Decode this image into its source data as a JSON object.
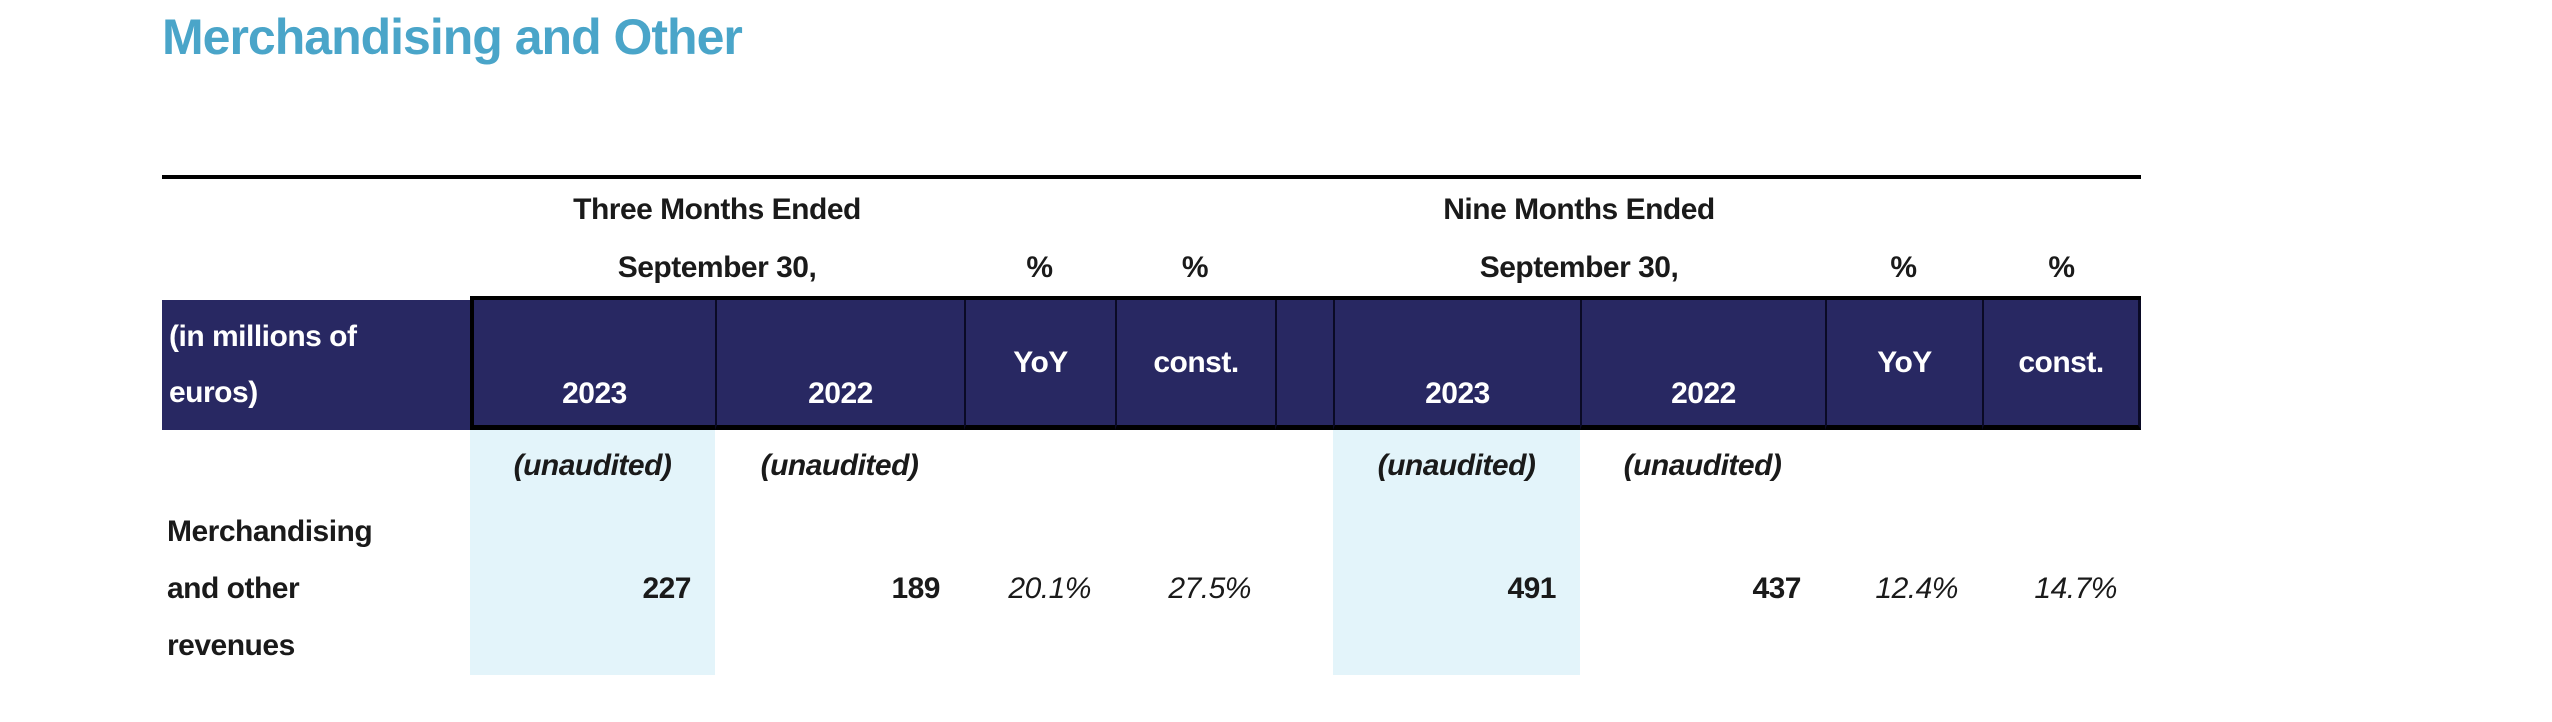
{
  "title": "Merchandising and Other",
  "colors": {
    "title_blue": "#4aa5c9",
    "header_navy": "#282862",
    "highlight_light_blue": "#e3f4fa",
    "rule_black": "#000000"
  },
  "table": {
    "row_label_header": "(in millions of euros)",
    "period_headers": [
      {
        "line1": "Three Months Ended",
        "line2": "September 30,"
      },
      {
        "line1": "Nine Months Ended",
        "line2": "September 30,"
      }
    ],
    "pct_header": "%",
    "col_headers": {
      "y2023": "2023",
      "y2022": "2022",
      "yoy": "YoY",
      "const": "const."
    },
    "unaudited_note": "(unaudited)",
    "rows": [
      {
        "label": "Merchandising and other revenues",
        "three_months_2023": "227",
        "three_months_2022": "189",
        "three_months_yoy_pct": "20.1%",
        "three_months_const_pct": "27.5%",
        "nine_months_2023": "491",
        "nine_months_2022": "437",
        "nine_months_yoy_pct": "12.4%",
        "nine_months_const_pct": "14.7%"
      }
    ]
  }
}
